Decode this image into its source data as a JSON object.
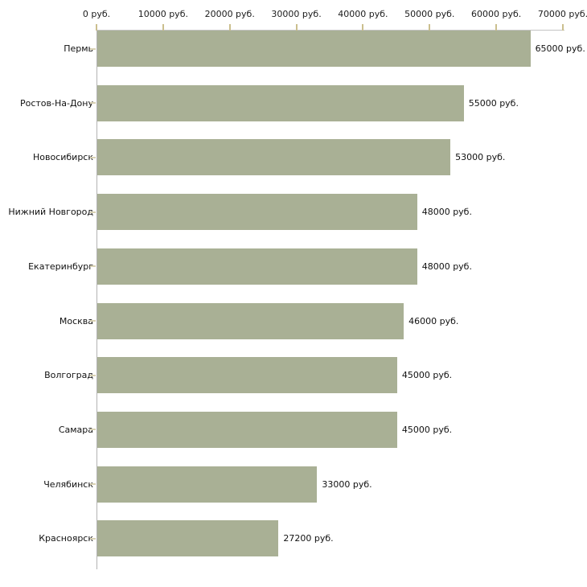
{
  "chart_data": {
    "type": "bar",
    "orientation": "horizontal",
    "title": "",
    "xlabel": "",
    "ylabel": "",
    "categories": [
      "Пермь",
      "Ростов-На-Дону",
      "Новосибирск",
      "Нижний Новгород",
      "Екатеринбург",
      "Москва",
      "Волгоград",
      "Самара",
      "Челябинск",
      "Красноярск"
    ],
    "values": [
      65000,
      55000,
      53000,
      48000,
      48000,
      46000,
      45000,
      45000,
      33000,
      27200
    ],
    "value_labels": [
      "65000 руб.",
      "55000 руб.",
      "53000 руб.",
      "48000 руб.",
      "48000 руб.",
      "46000 руб.",
      "45000 руб.",
      "45000 руб.",
      "33000 руб.",
      "27200 руб."
    ],
    "x_axis": {
      "position": "top",
      "min": 0,
      "max": 70000,
      "ticks": [
        0,
        10000,
        20000,
        30000,
        40000,
        50000,
        60000,
        70000
      ],
      "tick_labels": [
        "0 руб.",
        "10000 руб.",
        "20000 руб.",
        "30000 руб.",
        "40000 руб.",
        "50000 руб.",
        "60000 руб.",
        "70000 руб."
      ]
    },
    "grid": false,
    "legend": false,
    "colors": {
      "bar": "#a9b095",
      "x_axis_line": "#c3c3c3",
      "y_axis_line": "#b3b3b3",
      "x_tick": "#cbbf8e",
      "category_tick": "#d9d2b4",
      "text": "#111111",
      "background": "#ffffff"
    }
  }
}
